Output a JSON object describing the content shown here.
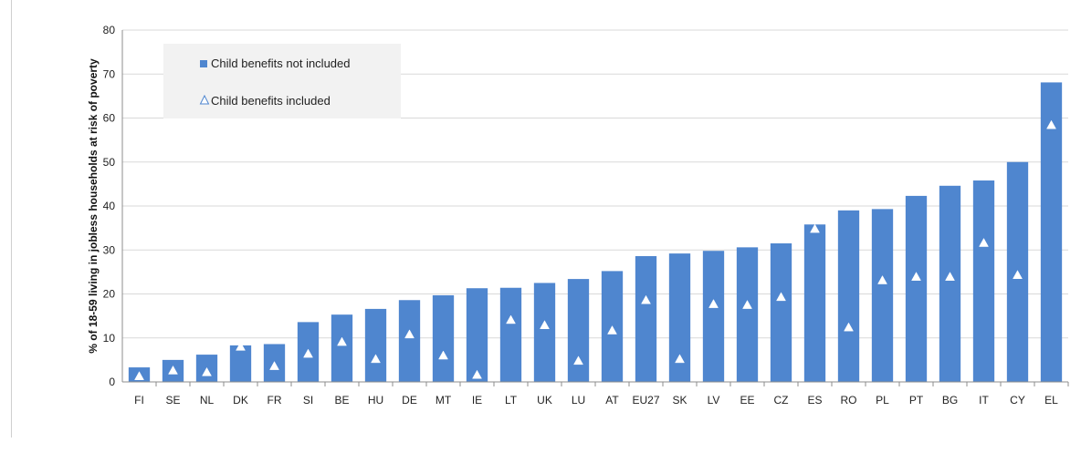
{
  "chart_data": {
    "type": "bar",
    "ylabel": "% of 18-59  living in jobless households at risk of poverty",
    "ylim": [
      0,
      80
    ],
    "yticks": [
      "0",
      "10",
      "20",
      "30",
      "40",
      "50",
      "60",
      "70",
      "80"
    ],
    "grid": true,
    "legend_position": "top-left",
    "categories": [
      "FI",
      "SE",
      "NL",
      "DK",
      "FR",
      "SI",
      "BE",
      "HU",
      "DE",
      "MT",
      "IE",
      "LT",
      "UK",
      "LU",
      "AT",
      "EU27",
      "SK",
      "LV",
      "EE",
      "CZ",
      "ES",
      "RO",
      "PL",
      "PT",
      "BG",
      "IT",
      "CY",
      "EL"
    ],
    "series": [
      {
        "name": "Child benefits not included",
        "kind": "bar",
        "color": "#4f86cf",
        "values": [
          3.3,
          5.0,
          6.2,
          8.3,
          8.6,
          13.6,
          15.3,
          16.6,
          18.6,
          19.7,
          21.3,
          21.4,
          22.5,
          23.4,
          25.2,
          28.6,
          29.2,
          29.8,
          30.6,
          31.5,
          35.8,
          39.0,
          39.3,
          42.3,
          44.6,
          45.8,
          50.0,
          68.1
        ]
      },
      {
        "name": "Child benefits included",
        "kind": "marker",
        "values": [
          1.3,
          2.6,
          2.2,
          8.0,
          3.6,
          6.4,
          9.1,
          5.2,
          10.8,
          6.0,
          1.6,
          14.1,
          12.9,
          4.8,
          11.7,
          18.6,
          5.2,
          17.7,
          17.5,
          19.3,
          34.8,
          12.4,
          23.1,
          23.9,
          23.9,
          31.6,
          24.3,
          58.4
        ]
      }
    ]
  }
}
